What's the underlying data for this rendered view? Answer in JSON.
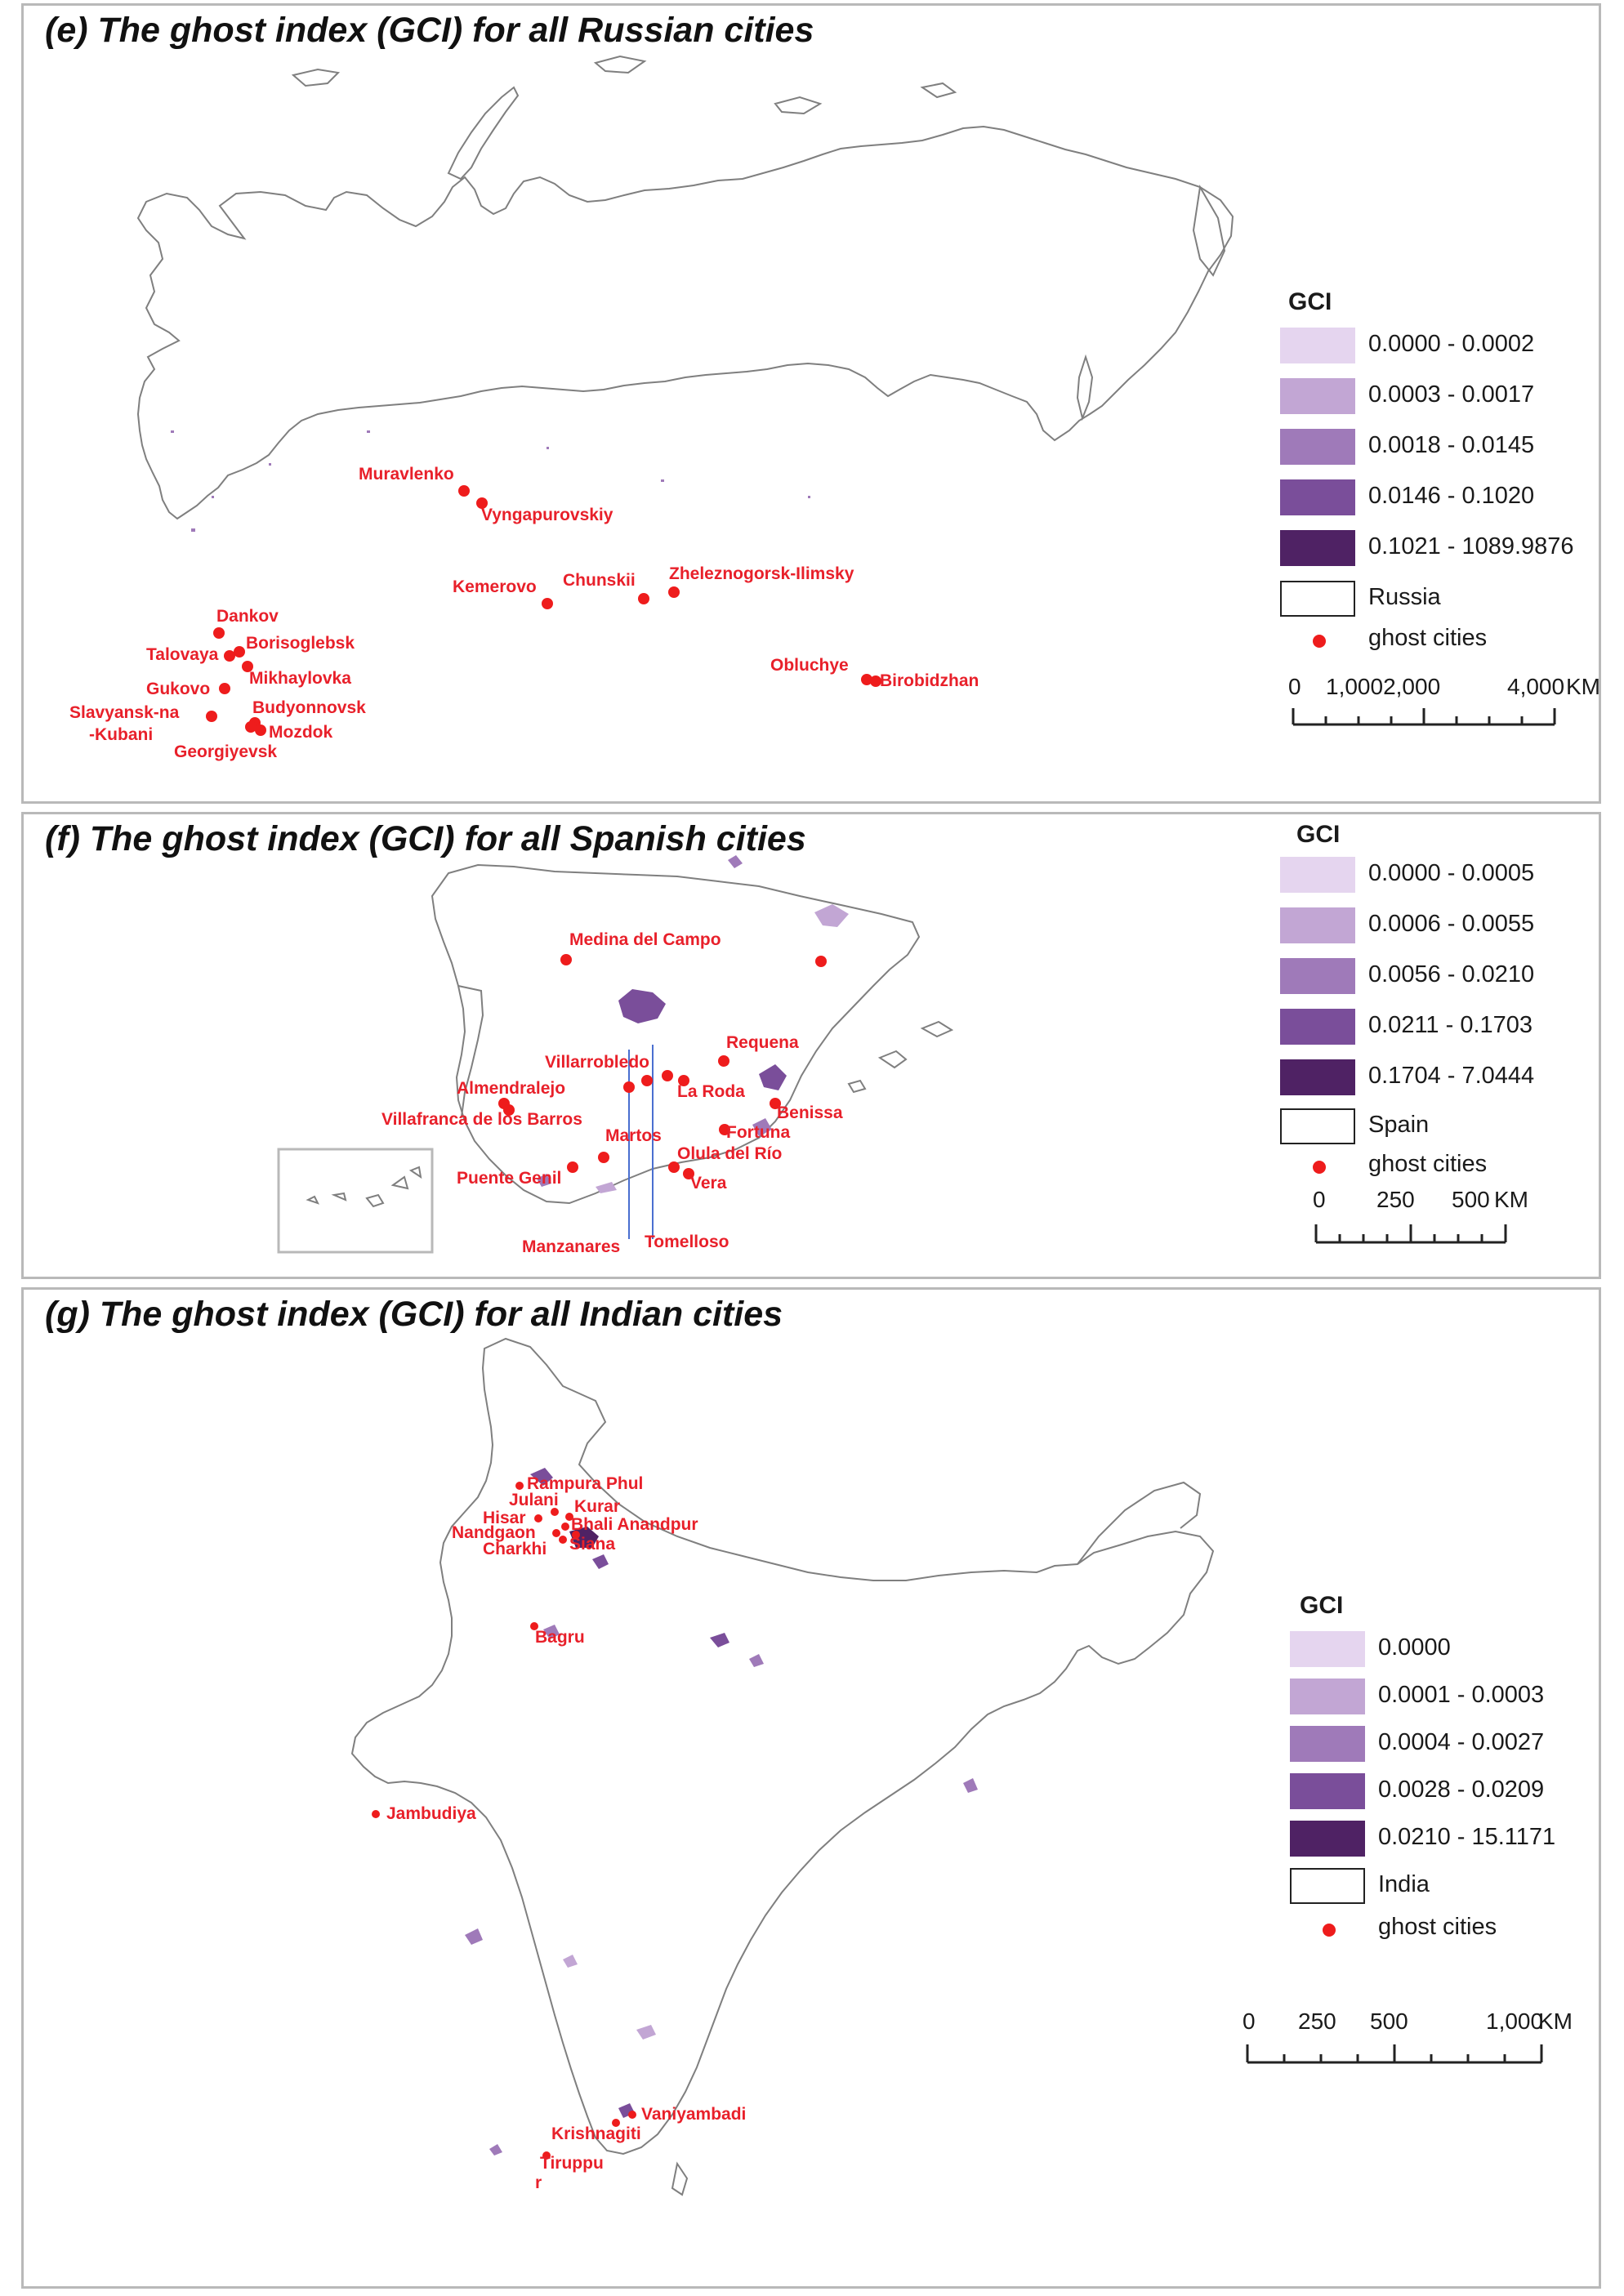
{
  "colors": {
    "gci_classes": [
      "#e5d5ef",
      "#c2a6d4",
      "#9f7ab9",
      "#7a4e9a",
      "#4f2264"
    ],
    "ghost_city": "#ee1c1c",
    "boundary": "#7f7f7f",
    "panel_border": "#b9b9b9"
  },
  "panels": [
    {
      "id": "russia",
      "title": "(e)  The ghost index (GCI) for all Russian cities",
      "legend": {
        "title": "GCI",
        "classes": [
          "0.0000 - 0.0002",
          "0.0003 - 0.0017",
          "0.0018 - 0.0145",
          "0.0146 - 0.1020",
          "0.1021 - 1089.9876"
        ],
        "boundary_label": "Russia",
        "points_label": "ghost cities"
      },
      "scale": {
        "ticks": [
          "0",
          "1,0002,000",
          "4,000"
        ],
        "unit": "KM"
      },
      "cities": [
        "Muravlenko",
        "Vyngapurovskiy",
        "Kemerovo",
        "Chunskii",
        "Zheleznogorsk-Ilimsky",
        "Dankov",
        "Talovaya",
        "Borisoglebsk",
        "Mikhaylovka",
        "Gukovo",
        "Budyonnovsk",
        "Mozdok",
        "Georgiyevsk",
        "Slavyansk-na",
        "-Kubani",
        "Obluchye",
        "Birobidzhan"
      ]
    },
    {
      "id": "spain",
      "title": "(f)  The ghost index (GCI) for all Spanish cities",
      "legend": {
        "title": "GCI",
        "classes": [
          "0.0000 - 0.0005",
          "0.0006 - 0.0055",
          "0.0056 - 0.0210",
          "0.0211 - 0.1703",
          "0.1704 - 7.0444"
        ],
        "boundary_label": "Spain",
        "points_label": "ghost cities"
      },
      "scale": {
        "ticks": [
          "0",
          "250",
          "500"
        ],
        "unit": "KM"
      },
      "cities": [
        "Medina del Campo",
        "Requena",
        "Villarrobledo",
        "Almendralejo",
        "La Roda",
        "Benissa",
        "Villafranca de los Barros",
        "Fortuna",
        "Martos",
        "Olula del Río",
        "Puente Genil",
        "Vera",
        "Manzanares",
        "Tomelloso"
      ]
    },
    {
      "id": "india",
      "title": "(g)  The ghost index (GCI) for all Indian cities",
      "legend": {
        "title": "GCI",
        "classes": [
          "0.0000",
          "0.0001 - 0.0003",
          "0.0004 - 0.0027",
          "0.0028 - 0.0209",
          "0.0210 - 15.1171"
        ],
        "boundary_label": "India",
        "points_label": "ghost cities"
      },
      "scale": {
        "ticks": [
          "0",
          "250",
          "500",
          "1,000"
        ],
        "unit": "KM"
      },
      "cities": [
        "Rampura Phul",
        "Julani",
        "Kurar",
        "Hisar",
        "Bhali Anandpur",
        "Nandgaon",
        "Charkhi",
        "Siana",
        "Bagru",
        "Jambudiya",
        "Vaniyambadi",
        "Krishnagiti",
        "Tiruppu",
        "r"
      ]
    }
  ]
}
